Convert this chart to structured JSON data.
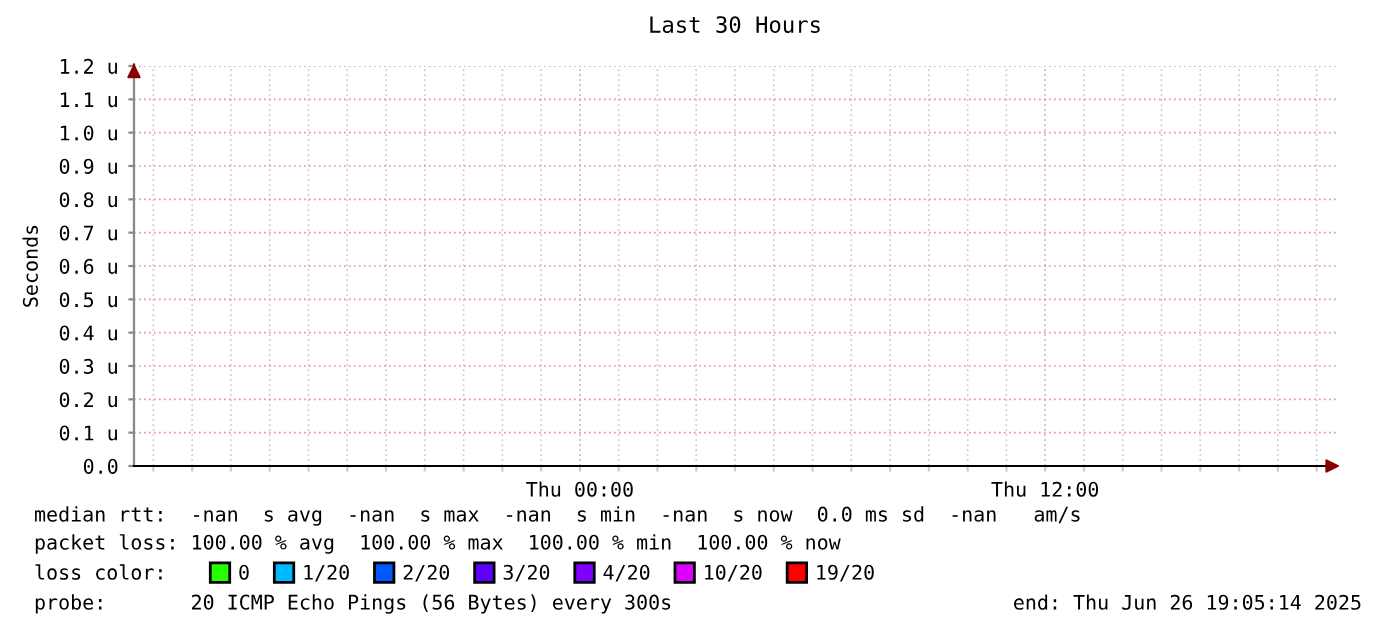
{
  "chart_data": {
    "type": "line",
    "title": "Last 30 Hours",
    "ylabel": "Seconds",
    "categories": [
      null,
      null,
      null,
      null,
      null,
      null,
      null,
      null,
      null,
      null,
      null,
      "Thu 00:00",
      null,
      null,
      null,
      null,
      null,
      null,
      null,
      null,
      null,
      null,
      null,
      "Thu 12:00",
      null,
      null,
      null,
      null,
      null,
      null,
      null
    ],
    "series": [
      {
        "name": "0",
        "color": "#26ff00",
        "values": [
          null,
          null,
          null,
          null,
          null,
          null,
          null,
          null,
          null,
          null,
          null,
          null,
          null,
          null,
          null,
          null,
          null,
          null,
          null,
          null,
          null,
          null,
          null,
          null,
          null,
          null,
          null,
          null,
          null,
          null,
          null
        ]
      },
      {
        "name": "1/20",
        "color": "#00b8ff",
        "values": [
          null,
          null,
          null,
          null,
          null,
          null,
          null,
          null,
          null,
          null,
          null,
          null,
          null,
          null,
          null,
          null,
          null,
          null,
          null,
          null,
          null,
          null,
          null,
          null,
          null,
          null,
          null,
          null,
          null,
          null,
          null
        ]
      },
      {
        "name": "2/20",
        "color": "#0059ff",
        "values": [
          null,
          null,
          null,
          null,
          null,
          null,
          null,
          null,
          null,
          null,
          null,
          null,
          null,
          null,
          null,
          null,
          null,
          null,
          null,
          null,
          null,
          null,
          null,
          null,
          null,
          null,
          null,
          null,
          null,
          null,
          null
        ]
      },
      {
        "name": "3/20",
        "color": "#5e00ff",
        "values": [
          null,
          null,
          null,
          null,
          null,
          null,
          null,
          null,
          null,
          null,
          null,
          null,
          null,
          null,
          null,
          null,
          null,
          null,
          null,
          null,
          null,
          null,
          null,
          null,
          null,
          null,
          null,
          null,
          null,
          null,
          null
        ]
      },
      {
        "name": "4/20",
        "color": "#7e00ff",
        "values": [
          null,
          null,
          null,
          null,
          null,
          null,
          null,
          null,
          null,
          null,
          null,
          null,
          null,
          null,
          null,
          null,
          null,
          null,
          null,
          null,
          null,
          null,
          null,
          null,
          null,
          null,
          null,
          null,
          null,
          null,
          null
        ]
      },
      {
        "name": "10/20",
        "color": "#dd00ff",
        "values": [
          null,
          null,
          null,
          null,
          null,
          null,
          null,
          null,
          null,
          null,
          null,
          null,
          null,
          null,
          null,
          null,
          null,
          null,
          null,
          null,
          null,
          null,
          null,
          null,
          null,
          null,
          null,
          null,
          null,
          null,
          null
        ]
      },
      {
        "name": "19/20",
        "color": "#ff0000",
        "values": [
          null,
          null,
          null,
          null,
          null,
          null,
          null,
          null,
          null,
          null,
          null,
          null,
          null,
          null,
          null,
          null,
          null,
          null,
          null,
          null,
          null,
          null,
          null,
          null,
          null,
          null,
          null,
          null,
          null,
          null,
          null
        ]
      }
    ],
    "ylim": [
      0,
      1.2
    ],
    "yticks": [
      {
        "value": 0,
        "label": "0.0"
      },
      {
        "value": 0.1,
        "label": "0.1 u"
      },
      {
        "value": 0.2,
        "label": "0.2 u"
      },
      {
        "value": 0.3,
        "label": "0.3 u"
      },
      {
        "value": 0.4,
        "label": "0.4 u"
      },
      {
        "value": 0.5,
        "label": "0.5 u"
      },
      {
        "value": 0.6,
        "label": "0.6 u"
      },
      {
        "value": 0.7,
        "label": "0.7 u"
      },
      {
        "value": 0.8,
        "label": "0.8 u"
      },
      {
        "value": 0.9,
        "label": "0.9 u"
      },
      {
        "value": 1.0,
        "label": "1.0 u"
      },
      {
        "value": 1.1,
        "label": "1.1 u"
      },
      {
        "value": 1.2,
        "label": "1.2 u"
      }
    ],
    "grid": true,
    "legend": "bottom",
    "annotations": [
      "median rtt:  -nan  s avg  -nan  s max  -nan  s min  -nan  s now  0.0 ms sd  -nan   am/s",
      "packet loss: 100.00 % avg  100.00 % max  100.00 % min  100.00 % now",
      "loss color:",
      "probe:       20 ICMP Echo Pings (56 Bytes) every 300s",
      "end: Thu Jun 26 19:05:14 2025"
    ]
  }
}
